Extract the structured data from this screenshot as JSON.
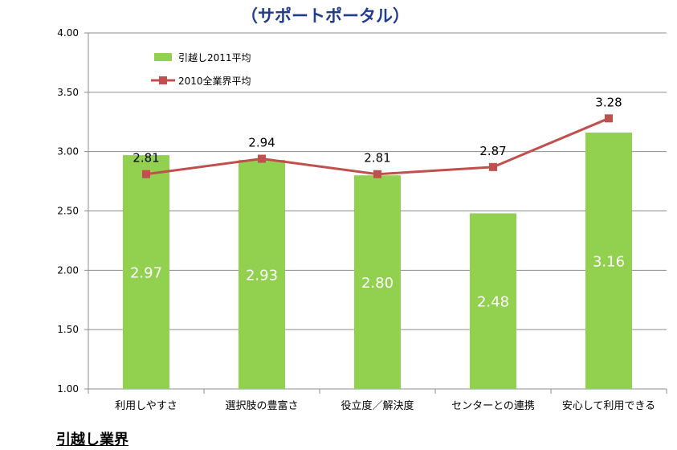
{
  "page": {
    "title": "（サポートポータル）",
    "footer_title": "引越し業界"
  },
  "chart_data": {
    "type": "bar",
    "categories": [
      "利用しやすさ",
      "選択肢の豊富さ",
      "役立度／解決度",
      "センターとの連携",
      "安心して利用できる"
    ],
    "series": [
      {
        "name": "引越し2011平均",
        "type": "bar",
        "values": [
          2.97,
          2.93,
          2.8,
          2.48,
          3.16
        ],
        "color": "#92d050"
      },
      {
        "name": "2010全業界平均",
        "type": "line",
        "values": [
          2.81,
          2.94,
          2.81,
          2.87,
          3.28
        ],
        "color": "#c0504d"
      }
    ],
    "bar_labels": [
      "2.97",
      "2.93",
      "2.80",
      "2.48",
      "3.16"
    ],
    "line_labels": [
      "2.81",
      "2.94",
      "2.81",
      "2.87",
      "3.28"
    ],
    "yticks": [
      "1.00",
      "1.50",
      "2.00",
      "2.50",
      "3.00",
      "3.50",
      "4.00"
    ],
    "ylim": [
      1.0,
      4.0
    ],
    "grid": true,
    "legend_position": "top-left"
  }
}
